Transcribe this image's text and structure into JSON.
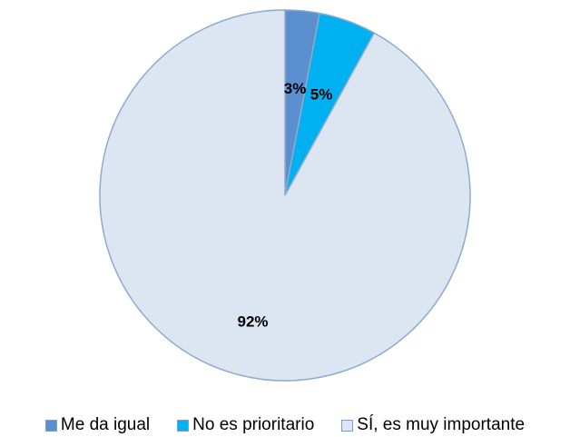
{
  "chart_data": {
    "type": "pie",
    "title": "",
    "slices": [
      {
        "name": "Me da igual",
        "value": 3,
        "label": "3%",
        "color": "#5b8fd0"
      },
      {
        "name": "No es prioritario",
        "value": 5,
        "label": "5%",
        "color": "#00b0f0"
      },
      {
        "name": "SÍ, es muy importante",
        "value": 92,
        "label": "92%",
        "color": "#dce6f2"
      }
    ],
    "slice_border_color": "#8eaacc",
    "legend_placement": "bottom"
  }
}
